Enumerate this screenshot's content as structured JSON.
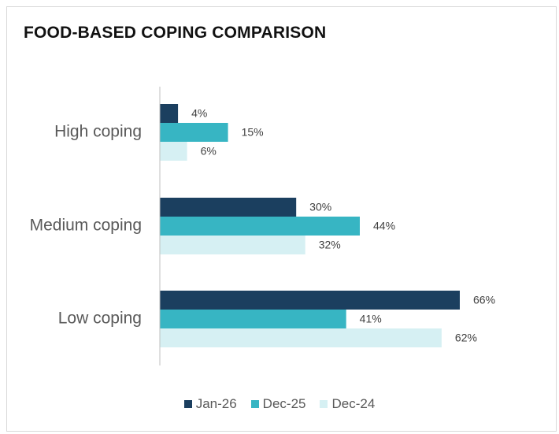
{
  "chart_data": {
    "type": "bar",
    "orientation": "horizontal",
    "title": "FOOD-BASED COPING COMPARISON",
    "categories": [
      "High coping",
      "Medium coping",
      "Low coping"
    ],
    "series": [
      {
        "name": "Jan-26",
        "values": [
          4,
          30,
          66
        ],
        "labels": [
          "4%",
          "30%",
          "66%"
        ],
        "color": "#1b3f5f"
      },
      {
        "name": "Dec-25",
        "values": [
          15,
          44,
          41
        ],
        "labels": [
          "15%",
          "44%",
          "41%"
        ],
        "color": "#37b5c3"
      },
      {
        "name": "Dec-24",
        "values": [
          6,
          32,
          62
        ],
        "labels": [
          "6%",
          "32%",
          "62%"
        ],
        "color": "#d6f0f3"
      }
    ],
    "xlim": [
      0,
      70
    ],
    "unit": "%",
    "grid": false,
    "legend_position": "bottom"
  }
}
